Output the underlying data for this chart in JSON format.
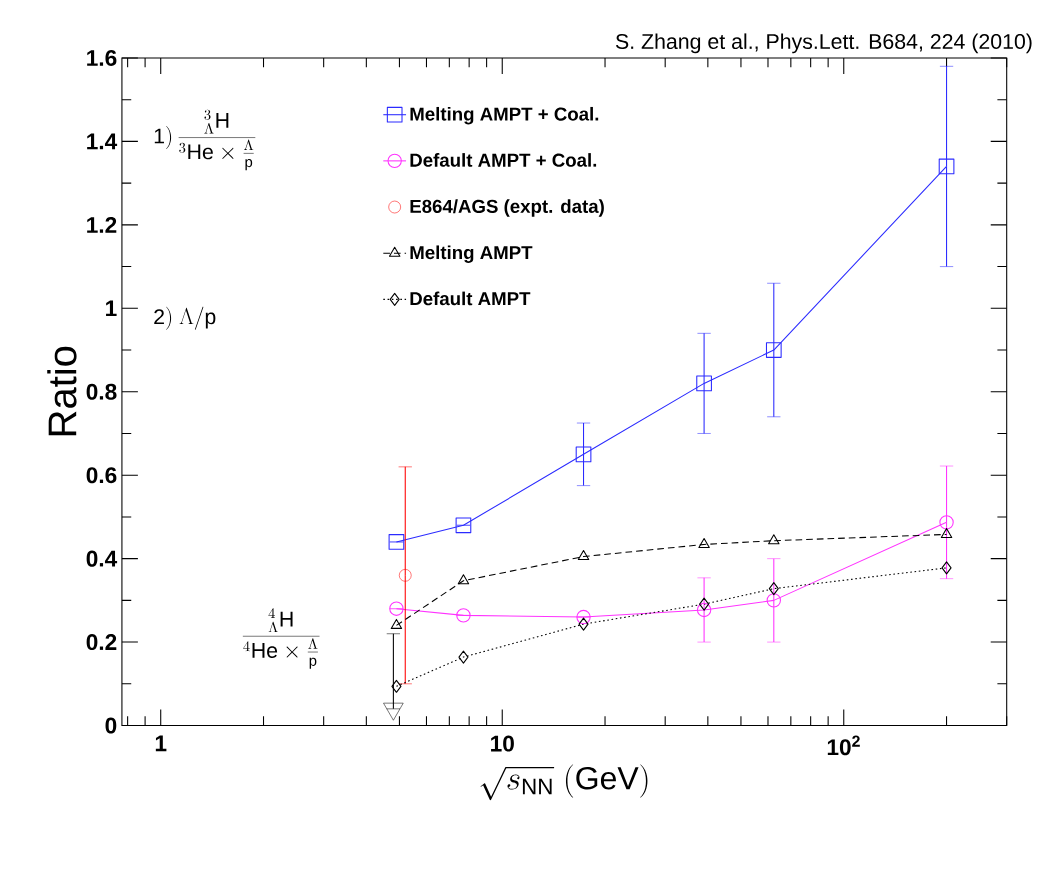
{
  "chart_data": {
    "type": "line",
    "xlabel": "\\sqrt{s_{\\mathrm{NN}}}\\ \\mathrm{(GeV)}",
    "ylabel": "Ratio",
    "log": "x",
    "xlim": [
      0.77,
      300
    ],
    "ylim": [
      0,
      1.6
    ],
    "xticks": [
      1,
      10,
      {
        "value": 100,
        "label": "10$^{2}$"
      }
    ],
    "yticks": [
      0,
      0.2,
      0.4,
      0.6,
      0.8,
      1,
      1.2,
      1.4,
      1.6
    ],
    "legend": "top left",
    "x": [
      4.9,
      7.7,
      17.3,
      39,
      62.4,
      200
    ],
    "series": [
      {
        "name": "Melting AMPT + Coal.",
        "color": "#2b2bff",
        "marker": "square",
        "line_style": "solid",
        "values": [
          0.44,
          0.48,
          0.65,
          0.82,
          0.9,
          1.34
        ],
        "errors": [
          null,
          null,
          0.075,
          0.12,
          0.16,
          0.24
        ]
      },
      {
        "name": "Default AMPT + Coal.",
        "color": "#ff33ff",
        "marker": "circle",
        "line_style": "solid",
        "values": [
          0.28,
          0.264,
          0.26,
          0.277,
          0.3,
          0.487
        ],
        "errors": [
          null,
          null,
          null,
          0.077,
          0.1,
          0.135
        ]
      },
      {
        "name": "E864/AGS (expt. data)",
        "type": "scatter",
        "color": "#ff0000",
        "marker": "circle",
        "x": [
          5.2
        ],
        "values": [
          0.36
        ],
        "errors": [
          0.26
        ]
      },
      {
        "name": "Melting AMPT",
        "color": "#000000",
        "marker": "triangle",
        "line_style": "dashed",
        "values": [
          0.24,
          0.347,
          0.405,
          0.434,
          0.443,
          0.458
        ]
      },
      {
        "name": "Default AMPT",
        "color": "#000000",
        "marker": "diamond",
        "line_style": "dotted",
        "values": [
          0.094,
          0.164,
          0.243,
          0.291,
          0.328,
          0.378
        ]
      },
      {
        "type": "scatter",
        "color": "#000000",
        "marker": "triangle",
        "x": [
          4.8
        ],
        "values": [
          0.04
        ],
        "errors": [
          [
            0.04,
            0.22
          ]
        ]
      }
    ],
    "annotations": [
      "S. Zhang et al., Phys.Lett. B684, 224 (2010)",
      "\\mathrm{1)}\\,\\frac{{}^{3}_{\\Lambda}\\mathrm{H}}{{}^{3}\\mathrm{He}\\times\\frac{\\Lambda}{\\mathrm{p}}}",
      "\\mathrm{2)}\\ \\Lambda/\\mathrm{p}",
      "\\frac{{}^{4}_{\\Lambda}\\mathrm{H}}{{}^{4}\\mathrm{He}\\times\\frac{\\Lambda}{\\mathrm{p}}}"
    ]
  }
}
